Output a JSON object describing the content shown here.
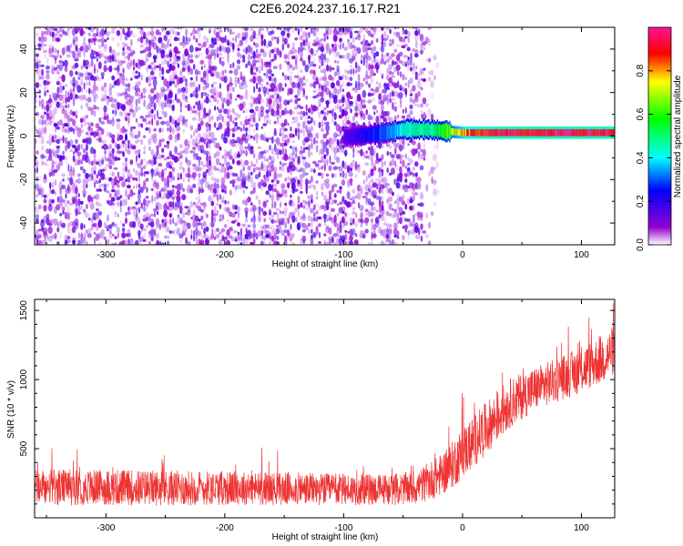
{
  "figure": {
    "title": "C2E6.2024.237.16.17.R21"
  },
  "chart_data": [
    {
      "type": "heatmap",
      "name": "spectrogram",
      "xlabel": "Height of straight line (km)",
      "ylabel": "Frequency (Hz)",
      "xlim": [
        -360,
        128
      ],
      "ylim": [
        -50,
        50
      ],
      "xticks": [
        -300,
        -200,
        -100,
        0,
        100
      ],
      "yticks": [
        -40,
        -20,
        0,
        20,
        40
      ],
      "noise_region_x": [
        -360,
        -40
      ],
      "noise_fade_x": [
        -40,
        -20
      ],
      "signal_track": {
        "x": [
          -100,
          -80,
          -60,
          -50,
          -40,
          -30,
          -20,
          -10,
          0,
          10,
          30,
          60,
          90,
          128
        ],
        "freq_hz": [
          -0.5,
          0.5,
          2.0,
          3.0,
          3.0,
          3.0,
          2.5,
          2.0,
          1.5,
          1.5,
          1.5,
          1.5,
          1.5,
          1.5
        ],
        "amplitude": [
          0.15,
          0.25,
          0.35,
          0.45,
          0.5,
          0.5,
          0.55,
          0.7,
          0.85,
          0.95,
          1.0,
          1.0,
          1.0,
          1.0
        ]
      },
      "colorbar": {
        "label": "Normalized spectral amplitude",
        "ticks": [
          "0.0",
          "0.2",
          "0.4",
          "0.6",
          "0.8"
        ],
        "range": [
          0,
          1
        ],
        "colors": [
          "#ffffff",
          "#9400d3",
          "#0000ff",
          "#00ffff",
          "#00ff00",
          "#ffff00",
          "#ff0000",
          "#ff1493"
        ]
      }
    },
    {
      "type": "line",
      "name": "snr",
      "xlabel": "Height of straight line (km)",
      "ylabel": "SNR (10 * v/v)",
      "xlim": [
        -360,
        128
      ],
      "ylim": [
        0,
        1580
      ],
      "xticks": [
        -300,
        -200,
        -100,
        0,
        100
      ],
      "yticks": [
        500,
        1000,
        1500
      ],
      "color": "#ee3333",
      "series": [
        {
          "x": [
            -360,
            -300,
            -250,
            -200,
            -150,
            -100,
            -60,
            -40,
            -20,
            -10,
            0,
            20,
            40,
            60,
            80,
            100,
            120,
            128
          ],
          "mean": [
            220,
            220,
            215,
            215,
            210,
            205,
            205,
            215,
            300,
            370,
            470,
            650,
            830,
            930,
            1000,
            1070,
            1160,
            1220
          ],
          "spread": [
            130,
            130,
            130,
            125,
            120,
            115,
            115,
            120,
            150,
            170,
            190,
            190,
            180,
            160,
            160,
            170,
            180,
            180
          ]
        }
      ]
    }
  ]
}
